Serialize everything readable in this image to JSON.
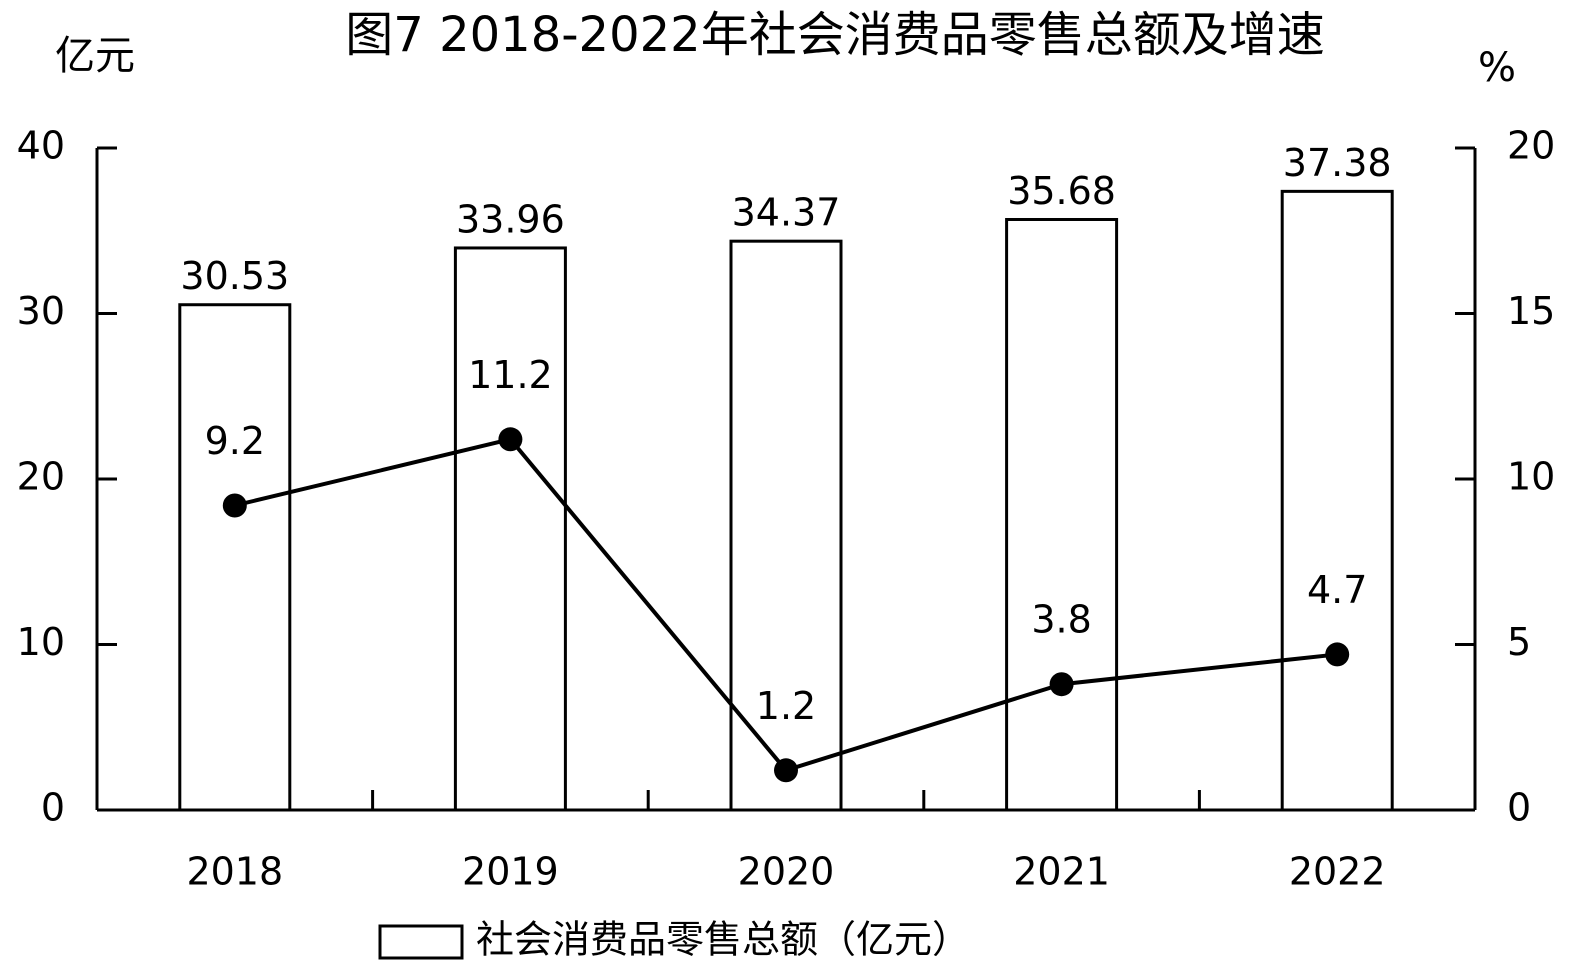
{
  "chart_data": {
    "type": "bar",
    "title": "图7 2018-2022年社会消费品零售总额及增速",
    "y_label": "亿元",
    "y2_label": "%",
    "categories": [
      "2018",
      "2019",
      "2020",
      "2021",
      "2022"
    ],
    "series": [
      {
        "name": "社会消费品零售总额（亿元）",
        "type": "bar",
        "color": "#ffffff",
        "values": [
          30.53,
          33.96,
          34.37,
          35.68,
          37.38
        ]
      },
      {
        "type": "line",
        "axis": "y2",
        "color": "#000000",
        "values": [
          9.2,
          11.2,
          1.2,
          3.8,
          4.7
        ]
      }
    ],
    "ylim": [
      0,
      40
    ],
    "yticks": [
      0,
      10,
      20,
      30,
      40
    ],
    "y2lim": [
      0,
      20
    ],
    "y2ticks": [
      0,
      5,
      10,
      15,
      20
    ],
    "legend": "bottom"
  }
}
